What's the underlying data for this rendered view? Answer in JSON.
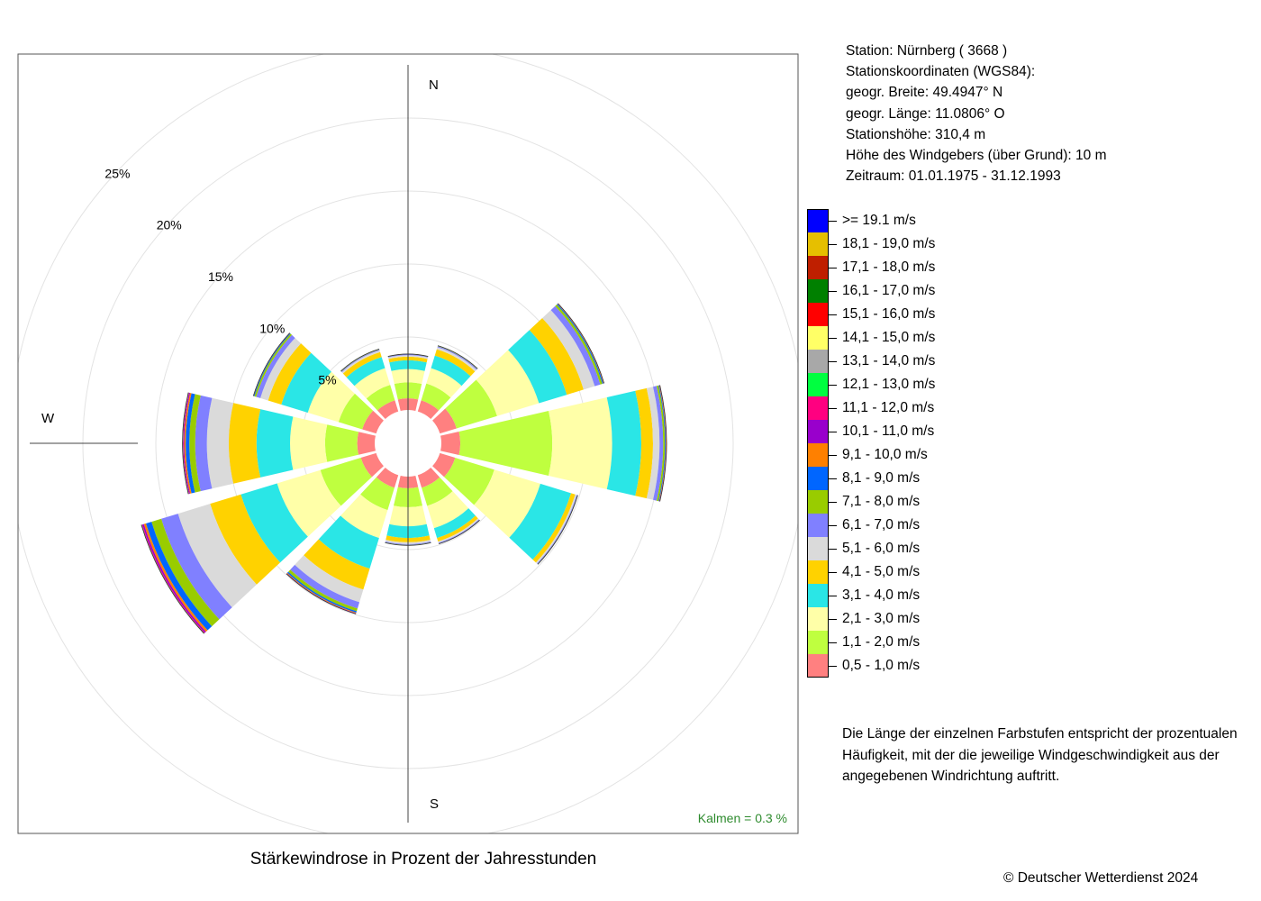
{
  "info": {
    "station": "Station:  Nürnberg  ( 3668 )",
    "coords_heading": "Stationskoordinaten (WGS84):",
    "latitude": "geogr. Breite: 49.4947° N",
    "longitude": "geogr. Länge: 11.0806° O",
    "elevation": "Stationshöhe: 310,4 m",
    "sensor_height": "Höhe des Windgebers (über Grund): 10 m",
    "period": "Zeitraum: 01.01.1975 - 31.12.1993"
  },
  "compass": {
    "north": "N",
    "south": "S",
    "west": "W"
  },
  "calm_label": "Kalmen  =  0.3 %",
  "note": {
    "line1": "Die Länge der einzelnen Farbstufen entspricht der prozentualen",
    "line2": "Häufigkeit, mit der die jeweilige Windgeschwindigkeit aus der",
    "line3": "angegebenen Windrichtung auftritt."
  },
  "chart_title": "Stärkewindrose in Prozent der Jahresstunden",
  "copyright": "© Deutscher Wetterdienst  2024",
  "chart_data": {
    "type": "wind-rose (stacked polar bar)",
    "title": "Stärkewindrose in Prozent der Jahresstunden",
    "radial_unit": "%",
    "ring_labels": [
      "5%",
      "10%",
      "15%",
      "20%",
      "25%"
    ],
    "rings": [
      5,
      10,
      15,
      20,
      25
    ],
    "calm_percent": 0.3,
    "directions_deg": [
      0,
      30,
      60,
      90,
      120,
      150,
      180,
      210,
      240,
      270,
      300,
      330
    ],
    "classes": [
      {
        "label": "0,5 - 1,0 m/s",
        "color": "#FF8080"
      },
      {
        "label": "1,1 - 2,0 m/s",
        "color": "#BFFF3F"
      },
      {
        "label": "2,1 - 3,0 m/s",
        "color": "#FFFFA8"
      },
      {
        "label": "3,1 - 4,0 m/s",
        "color": "#2AE6E6"
      },
      {
        "label": "4,1 - 5,0 m/s",
        "color": "#FFD200"
      },
      {
        "label": "5,1 - 6,0 m/s",
        "color": "#DADADA"
      },
      {
        "label": "6,1 - 7,0 m/s",
        "color": "#8080FF"
      },
      {
        "label": "7,1 - 8,0 m/s",
        "color": "#99CC00"
      },
      {
        "label": "8,1 - 9,0 m/s",
        "color": "#0066FF"
      },
      {
        "label": "9,1 - 10,0 m/s",
        "color": "#FF8000"
      },
      {
        "label": "10,1 - 11,0 m/s",
        "color": "#9900CC"
      },
      {
        "label": "11,1 - 12,0 m/s",
        "color": "#FF0080"
      },
      {
        "label": "12,1 - 13,0 m/s",
        "color": "#00FF40"
      },
      {
        "label": "13,1 - 14,0 m/s",
        "color": "#A8A8A8"
      },
      {
        "label": "14,1 - 15,0 m/s",
        "color": "#FFFF66"
      },
      {
        "label": "15,1 - 16,0 m/s",
        "color": "#FF0000"
      },
      {
        "label": "16,1 - 17,0 m/s",
        "color": "#008000"
      },
      {
        "label": "17,1 - 18,0 m/s",
        "color": "#BF1F00"
      },
      {
        "label": "18,1 - 19,0 m/s",
        "color": "#E6BF00"
      },
      {
        "label": ">= 19.1 m/s",
        "color": "#0000FF"
      }
    ],
    "series": [
      {
        "direction": 0,
        "values": [
          0.8,
          1.1,
          0.9,
          0.6,
          0.25,
          0.1,
          0.05,
          0.02,
          0.01,
          0,
          0,
          0,
          0,
          0,
          0,
          0,
          0,
          0,
          0,
          0
        ]
      },
      {
        "direction": 30,
        "values": [
          0.8,
          1.2,
          1.1,
          0.9,
          0.45,
          0.15,
          0.07,
          0.03,
          0.01,
          0,
          0,
          0,
          0,
          0,
          0,
          0,
          0,
          0,
          0,
          0
        ]
      },
      {
        "direction": 60,
        "values": [
          1.2,
          2.9,
          3.0,
          2.0,
          1.2,
          0.8,
          0.4,
          0.15,
          0.07,
          0.03,
          0.02,
          0,
          0,
          0,
          0,
          0,
          0,
          0,
          0,
          0
        ]
      },
      {
        "direction": 90,
        "values": [
          1.3,
          6.3,
          4.1,
          2.0,
          0.8,
          0.45,
          0.25,
          0.12,
          0.05,
          0.03,
          0.02,
          0.01,
          0,
          0,
          0,
          0,
          0,
          0,
          0,
          0
        ]
      },
      {
        "direction": 120,
        "values": [
          1.1,
          2.8,
          3.3,
          2.2,
          0.3,
          0.1,
          0.05,
          0.02,
          0.01,
          0,
          0,
          0,
          0,
          0,
          0,
          0,
          0,
          0,
          0,
          0
        ]
      },
      {
        "direction": 150,
        "values": [
          0.9,
          1.3,
          1.6,
          0.7,
          0.25,
          0.1,
          0.05,
          0.02,
          0,
          0,
          0,
          0,
          0,
          0,
          0,
          0,
          0,
          0,
          0,
          0
        ]
      },
      {
        "direction": 180,
        "values": [
          0.8,
          1.3,
          1.3,
          0.8,
          0.3,
          0.12,
          0.06,
          0.02,
          0.01,
          0,
          0,
          0,
          0,
          0,
          0,
          0,
          0,
          0,
          0,
          0
        ]
      },
      {
        "direction": 210,
        "values": [
          0.9,
          1.6,
          2.0,
          2.2,
          1.5,
          0.9,
          0.45,
          0.2,
          0.1,
          0.05,
          0.03,
          0.01,
          0,
          0,
          0,
          0,
          0,
          0,
          0,
          0
        ]
      },
      {
        "direction": 240,
        "values": [
          1.1,
          2.9,
          3.1,
          2.6,
          2.2,
          2.3,
          1.2,
          0.7,
          0.4,
          0.15,
          0.1,
          0.05,
          0.02,
          0.01,
          0,
          0,
          0,
          0,
          0,
          0
        ]
      },
      {
        "direction": 270,
        "values": [
          1.2,
          2.2,
          2.4,
          2.3,
          1.9,
          1.5,
          0.8,
          0.4,
          0.25,
          0.1,
          0.06,
          0.03,
          0.02,
          0.01,
          0,
          0,
          0,
          0,
          0,
          0
        ]
      },
      {
        "direction": 300,
        "values": [
          1.0,
          1.7,
          2.2,
          1.9,
          0.95,
          0.55,
          0.3,
          0.12,
          0.05,
          0.02,
          0.01,
          0,
          0,
          0,
          0,
          0,
          0,
          0,
          0,
          0
        ]
      },
      {
        "direction": 330,
        "values": [
          0.8,
          1.1,
          1.2,
          0.8,
          0.35,
          0.12,
          0.06,
          0.03,
          0.01,
          0,
          0,
          0,
          0,
          0,
          0,
          0,
          0,
          0,
          0,
          0
        ]
      }
    ]
  }
}
